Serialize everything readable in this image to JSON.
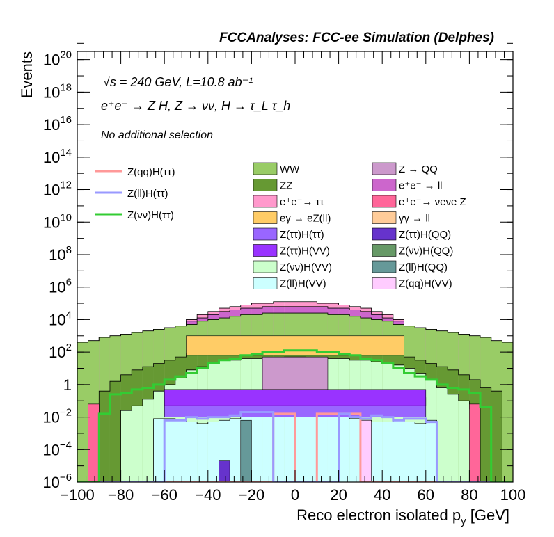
{
  "chart_data": {
    "type": "area",
    "title": "FCCAnalyses: FCC-ee Simulation (Delphes)",
    "xlabel": "Reco electron isolated p_y [GeV]",
    "ylabel": "Events",
    "xlim": [
      -100,
      100
    ],
    "ylim_log10": [
      -6,
      20.5
    ],
    "log_y": true,
    "grid": false,
    "x_ticks": [
      -100,
      -80,
      -60,
      -40,
      -20,
      0,
      20,
      40,
      60,
      80,
      100
    ],
    "y_ticks": [
      {
        "exp": -6,
        "label": "10^-6"
      },
      {
        "exp": -4,
        "label": "10^-4"
      },
      {
        "exp": -2,
        "label": "10^-2"
      },
      {
        "exp": 0,
        "label": "1"
      },
      {
        "exp": 2,
        "label": "10^2"
      },
      {
        "exp": 4,
        "label": "10^4"
      },
      {
        "exp": 6,
        "label": "10^6"
      },
      {
        "exp": 8,
        "label": "10^8"
      },
      {
        "exp": 10,
        "label": "10^10"
      },
      {
        "exp": 12,
        "label": "10^12"
      },
      {
        "exp": 14,
        "label": "10^14"
      },
      {
        "exp": 16,
        "label": "10^16"
      },
      {
        "exp": 18,
        "label": "10^18"
      },
      {
        "exp": 20,
        "label": "10^20"
      }
    ],
    "annotations": {
      "energy_lumi": "√s = 240 GeV, L=10.8 ab⁻¹",
      "process": "e⁺e⁻ → Z H, Z → νν, H → τ_L τ_h",
      "selection": "No additional selection"
    },
    "legend_placement": "top-center",
    "bin_width": 5,
    "bin_edges_range": [
      -100,
      100
    ],
    "stack_notes": "Stacked background histograms (log10 of cumulative height per 5 GeV bin, -100 to 100); signal lines overlaid unstacked.",
    "stack": [
      {
        "name": "Z(ll)H(VV)",
        "color": "#ccffff",
        "edge": "#000000",
        "log10_top": [
          -6,
          -6,
          -6,
          -6,
          -6,
          -6,
          -6,
          -2.1,
          -2.1,
          -2.2,
          -2.3,
          -2.4,
          -2.3,
          -2.2,
          -2.1,
          -1.9,
          -1.9,
          -1.8,
          -1.9,
          -1.9,
          -1.9,
          -1.9,
          -1.9,
          -1.8,
          -2.0,
          -2.1,
          -2.2,
          -2.3,
          -2.3,
          -2.2,
          -2.3,
          -2.4,
          -2.2,
          -6,
          -6,
          -6,
          -6,
          -6,
          -6,
          -6
        ]
      },
      {
        "name": "Z(vv)H(VV)",
        "color": "#ccffcc",
        "edge": "#000000",
        "log10_top": [
          -6,
          -6,
          -6,
          -6,
          -1.6,
          -1.3,
          -0.9,
          -0.4,
          0,
          0.4,
          0.9,
          1.1,
          1.3,
          1.5,
          1.5,
          1.6,
          1.6,
          1.6,
          1.6,
          1.7,
          1.7,
          1.6,
          1.6,
          1.6,
          1.6,
          1.5,
          1.5,
          1.4,
          1.3,
          1.2,
          1.0,
          0.7,
          0.3,
          -0.2,
          -0.6,
          -1.0,
          -1.5,
          -6,
          -6,
          -6
        ]
      },
      {
        "name": "ZZ",
        "color": "#669933",
        "edge": "#000000",
        "log10_top": [
          -6,
          -5.8,
          -0.4,
          0.2,
          0.6,
          0.9,
          1.1,
          1.3,
          1.5,
          1.7,
          1.9,
          2.0,
          2.1,
          2.2,
          2.3,
          2.4,
          2.4,
          2.4,
          2.4,
          2.5,
          2.5,
          2.4,
          2.4,
          2.4,
          2.3,
          2.3,
          2.2,
          2.1,
          2.0,
          1.9,
          1.7,
          1.5,
          1.3,
          1.1,
          0.9,
          0.6,
          0.3,
          -0.2,
          -0.4,
          -6
        ]
      },
      {
        "name": "WW",
        "color": "#99cc66",
        "edge": "#000000",
        "log10_top": [
          2.6,
          2.7,
          2.9,
          3.0,
          3.1,
          3.2,
          3.3,
          3.4,
          3.5,
          3.6,
          3.7,
          3.9,
          4.0,
          4.1,
          4.2,
          4.3,
          4.3,
          4.4,
          4.4,
          4.4,
          4.4,
          4.4,
          4.4,
          4.3,
          4.3,
          4.2,
          4.1,
          4.0,
          3.9,
          3.7,
          3.6,
          3.5,
          3.4,
          3.3,
          3.2,
          3.1,
          3.0,
          2.9,
          2.7,
          2.6
        ]
      },
      {
        "name": "e⁺e⁻ → ll",
        "color": "#cc66cc",
        "edge": "#000000",
        "log10_top": [
          2.6,
          2.7,
          2.9,
          3.0,
          3.1,
          3.2,
          3.3,
          3.4,
          3.5,
          3.6,
          3.9,
          4.1,
          4.3,
          4.5,
          4.6,
          4.7,
          4.7,
          4.8,
          4.8,
          4.8,
          4.8,
          4.8,
          4.8,
          4.7,
          4.7,
          4.6,
          4.5,
          4.3,
          4.1,
          3.9,
          3.6,
          3.5,
          3.4,
          3.3,
          3.2,
          3.1,
          3.0,
          2.9,
          2.7,
          2.6
        ]
      },
      {
        "name": "e⁺e⁻ → ττ",
        "color": "#ff99cc",
        "edge": "#000000",
        "log10_top": [
          2.6,
          2.7,
          2.9,
          3.0,
          3.1,
          3.2,
          3.3,
          3.4,
          3.5,
          3.6,
          4.0,
          4.3,
          4.5,
          4.7,
          4.8,
          4.9,
          5.0,
          5.0,
          5.1,
          5.1,
          5.1,
          5.1,
          5.0,
          5.0,
          4.9,
          4.8,
          4.7,
          4.5,
          4.3,
          4.0,
          3.6,
          3.5,
          3.4,
          3.3,
          3.2,
          3.1,
          3.0,
          2.9,
          2.7,
          2.6
        ]
      }
    ],
    "band_notes": "Mid-height bands visible in image (log10 bottom/top):",
    "bands": [
      {
        "name": "eγ → eZ(ll)",
        "color": "#ffcc66",
        "x_range": [
          -50,
          50
        ],
        "log10_range": [
          1.8,
          3.0
        ]
      },
      {
        "name": "Z → QQ",
        "color": "#cc99cc",
        "x_range": [
          -15,
          15
        ],
        "log10_range": [
          -0.3,
          1.7
        ]
      },
      {
        "name": "Z(ττ)H(ττ)",
        "color": "#9966ff",
        "x_range": [
          -60,
          60
        ],
        "log10_range": [
          -2.0,
          -0.8
        ]
      },
      {
        "name": "Z(ττ)H(VV)",
        "color": "#9933ff",
        "x_range": [
          -60,
          60
        ],
        "log10_range": [
          -1.3,
          -0.3
        ]
      },
      {
        "name": "Z(ττ)H(QQ)",
        "color": "#6633cc",
        "x_range": [
          -35,
          -30
        ],
        "log10_range": [
          -6,
          -4.7
        ]
      },
      {
        "name": "Z(ll)H(QQ)",
        "color": "#669999",
        "x_range": [
          -25,
          -20
        ],
        "log10_range": [
          -6,
          -2.2
        ]
      },
      {
        "name": "Z(qq)H(VV)",
        "color": "#ffccff",
        "x_range": [
          30,
          35
        ],
        "log10_range": [
          -6,
          -2.2
        ]
      },
      {
        "name": "e⁺e⁻ → ν_e ν_e Z",
        "color": "#ff6699",
        "x_range": [
          -100,
          100
        ],
        "log10_range": [
          -6,
          -1.2
        ],
        "note": "visible at edges"
      }
    ],
    "lines": [
      {
        "name": "Z(qq)H(ττ)",
        "color": "#ff9999",
        "note": "spiky line, mostly at floor; spikes near -15, -10, 5, 10, 15, 20",
        "log10_top": [
          -6,
          -6,
          -6,
          -6,
          -6,
          -6,
          -6,
          -6,
          -6,
          -6,
          -6,
          -6,
          -6,
          -6,
          -6,
          -6,
          -6,
          -6,
          -1.8,
          -1.8,
          -6,
          -6,
          -1.8,
          -1.8,
          -1.8,
          -1.8,
          -6,
          -6,
          -6,
          -6,
          -6,
          -6,
          -6,
          -6,
          -6,
          -6,
          -6,
          -6,
          -6,
          -6
        ]
      },
      {
        "name": "Z(ll)H(ττ)",
        "color": "#9999ff",
        "log10_top": [
          -6,
          -6,
          -6,
          -6,
          -6,
          -6,
          -6,
          -6,
          -2.2,
          -2.2,
          -2.0,
          -2.1,
          -2.0,
          -2.0,
          -1.9,
          -1.7,
          -1.7,
          -1.7,
          -6,
          -6,
          -6,
          -6,
          -6,
          -6,
          -1.8,
          -2.0,
          -2.1,
          -1.9,
          -2.0,
          -2.2,
          -2.1,
          -2.1,
          -2.3,
          -6,
          -6,
          -6,
          -6,
          -6,
          -6,
          -6
        ]
      },
      {
        "name": "Z(vv)H(ττ)",
        "color": "#33cc33",
        "log10_top": [
          -6,
          -6,
          -1.8,
          -0.6,
          -0.5,
          -0.3,
          -0.2,
          0.0,
          0.3,
          0.5,
          0.7,
          1.0,
          1.3,
          1.5,
          1.6,
          1.8,
          1.9,
          2.0,
          2.0,
          2.1,
          2.1,
          2.1,
          2.0,
          2.0,
          1.9,
          1.8,
          1.6,
          1.5,
          1.3,
          1.0,
          0.7,
          0.5,
          0.3,
          0.0,
          -0.2,
          -0.3,
          -0.5,
          -1.4,
          -6,
          -6
        ]
      }
    ],
    "legend_lines": [
      {
        "label": "Z(qq)H(ττ)",
        "color": "#ff9999"
      },
      {
        "label": "Z(ll)H(ττ)",
        "color": "#9999ff"
      },
      {
        "label": "Z(νν)H(ττ)",
        "color": "#33cc33"
      }
    ],
    "legend_boxes": [
      {
        "label": "WW",
        "color": "#99cc66"
      },
      {
        "label": "Z → QQ",
        "color": "#cc99cc"
      },
      {
        "label": "ZZ",
        "color": "#669933"
      },
      {
        "label": "e⁺e⁻ → ll",
        "color": "#cc66cc"
      },
      {
        "label": "e⁺e⁻→ ττ",
        "color": "#ff99cc"
      },
      {
        "label": "e⁺e⁻→ νeνe Z",
        "color": "#ff6699"
      },
      {
        "label": "eγ → eZ(ll)",
        "color": "#ffcc66"
      },
      {
        "label": "γγ → ll",
        "color": "#ffcc99"
      },
      {
        "label": "Z(ττ)H(ττ)",
        "color": "#9966ff"
      },
      {
        "label": "Z(ττ)H(QQ)",
        "color": "#6633cc"
      },
      {
        "label": "Z(ττ)H(VV)",
        "color": "#9933ff"
      },
      {
        "label": "Z(νν)H(QQ)",
        "color": "#669966"
      },
      {
        "label": "Z(νν)H(VV)",
        "color": "#ccffcc"
      },
      {
        "label": "Z(ll)H(QQ)",
        "color": "#669999"
      },
      {
        "label": "Z(ll)H(VV)",
        "color": "#ccffff"
      },
      {
        "label": "Z(qq)H(VV)",
        "color": "#ffccff"
      }
    ]
  }
}
